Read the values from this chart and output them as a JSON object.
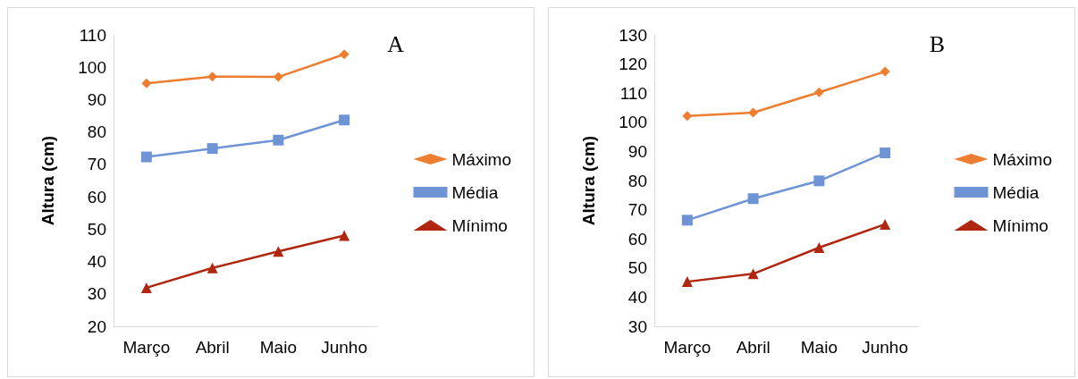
{
  "chart_data": [
    {
      "type": "line",
      "title": "A",
      "ylabel": "Altura (cm)",
      "categories": [
        "Março",
        "Abril",
        "Maio",
        "Junho"
      ],
      "ylim": [
        20,
        110
      ],
      "yticks": [
        20,
        30,
        40,
        50,
        60,
        70,
        80,
        90,
        100,
        110
      ],
      "grid": false,
      "legend": "right",
      "series": [
        {
          "name": "Máximo",
          "color": "#ed7d31",
          "marker": "diamond",
          "values": [
            95,
            97.1,
            97,
            104
          ]
        },
        {
          "name": "Média",
          "color": "#6f94d6",
          "marker": "square",
          "values": [
            72.3,
            74.9,
            77.5,
            83.7
          ]
        },
        {
          "name": "Mínimo",
          "color": "#b0260f",
          "marker": "triangle",
          "values": [
            31.9,
            38,
            43.1,
            48
          ]
        }
      ]
    },
    {
      "type": "line",
      "title": "B",
      "ylabel": "Altura (cm)",
      "categories": [
        "Março",
        "Abril",
        "Maio",
        "Junho"
      ],
      "ylim": [
        30,
        130
      ],
      "yticks": [
        30,
        40,
        50,
        60,
        70,
        80,
        90,
        100,
        110,
        120,
        130
      ],
      "grid": false,
      "legend": "right",
      "series": [
        {
          "name": "Máximo",
          "color": "#ed7d31",
          "marker": "diamond",
          "values": [
            102.2,
            103.3,
            110.3,
            117.4
          ]
        },
        {
          "name": "Média",
          "color": "#6f94d6",
          "marker": "square",
          "values": [
            66.4,
            73.8,
            79.9,
            89.5
          ]
        },
        {
          "name": "Mínimo",
          "color": "#b0260f",
          "marker": "triangle",
          "values": [
            45.3,
            48,
            57,
            65
          ]
        }
      ]
    }
  ]
}
